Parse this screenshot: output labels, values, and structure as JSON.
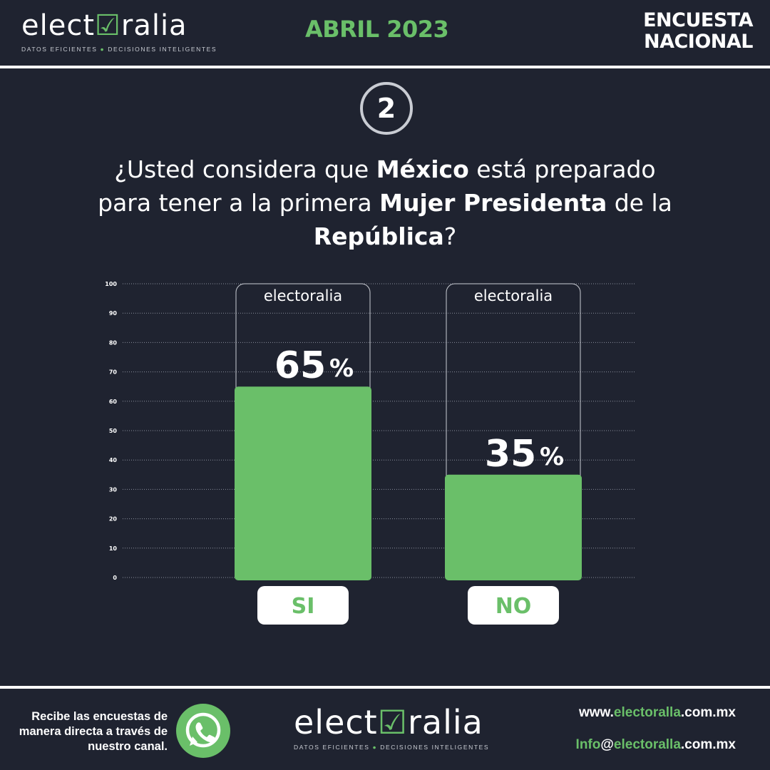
{
  "brand": {
    "name_start": "elect",
    "name_end": "ralia",
    "tagline_left": "DATOS EFICIENTES",
    "tagline_right": "DECISIONES INTELIGENTES"
  },
  "header": {
    "date": "ABRIL 2023",
    "survey_line1": "ENCUESTA",
    "survey_line2": "NACIONAL"
  },
  "question": {
    "number": "2",
    "parts": [
      {
        "text": "¿Usted considera que ",
        "bold": false
      },
      {
        "text": "México",
        "bold": true
      },
      {
        "text": " está preparado para tener a la primera ",
        "bold": false
      },
      {
        "text": "Mujer Presidenta",
        "bold": true
      },
      {
        "text": " de la ",
        "bold": false
      },
      {
        "text": "República",
        "bold": true
      },
      {
        "text": "?",
        "bold": false
      }
    ]
  },
  "chart_data": {
    "type": "bar",
    "categories": [
      "SI",
      "NO"
    ],
    "values": [
      65,
      35
    ],
    "value_labels": [
      "65",
      "35"
    ],
    "value_suffix": "%",
    "ylim": [
      0,
      100
    ],
    "yticks": [
      0,
      10,
      20,
      30,
      40,
      50,
      60,
      70,
      80,
      90,
      100
    ],
    "grid": true,
    "bar_color": "#6abf69",
    "box_brand": "electoralia"
  },
  "footer": {
    "channel_text": "Recibe las encuestas de manera directa a través de nuestro canal.",
    "website_prefix": "www.",
    "website_domain": "electoralla",
    "website_suffix": ".com.mx",
    "email_user": "Info",
    "email_at": "@",
    "email_domain": "electoralla",
    "email_suffix": ".com.mx"
  },
  "colors": {
    "background": "#1f2330",
    "accent": "#6abf69",
    "text": "#ffffff"
  }
}
